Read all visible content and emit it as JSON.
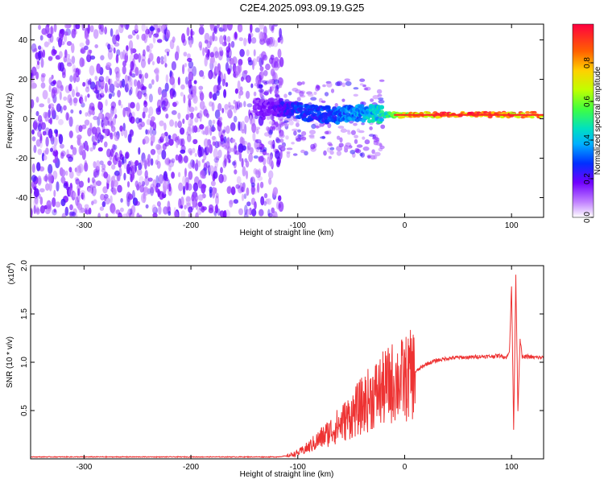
{
  "title": "C2E4.2025.093.09.19.G25",
  "chart_data": [
    {
      "type": "heatmap",
      "xlabel": "Height of straight line (km)",
      "ylabel": "Frequency (Hz)",
      "xlim": [
        -350,
        130
      ],
      "ylim": [
        -50,
        48
      ],
      "xticks": [
        -300,
        -200,
        -100,
        0,
        100
      ],
      "yticks": [
        -40,
        -20,
        0,
        20,
        40
      ],
      "colorbar": {
        "label": "Normalized spectral amplitude",
        "range": [
          0.0,
          1.0
        ],
        "ticks": [
          0.0,
          0.2,
          0.4,
          0.6,
          0.8
        ],
        "tick_labels": [
          "0.0",
          "0.2",
          "0.4",
          "0.6",
          "0.8"
        ]
      },
      "ridge": [
        {
          "x": -140,
          "freq": 6,
          "amp": 0.15
        },
        {
          "x": -120,
          "freq": 6,
          "amp": 0.2
        },
        {
          "x": -100,
          "freq": 4,
          "amp": 0.3
        },
        {
          "x": -80,
          "freq": 2,
          "amp": 0.3
        },
        {
          "x": -60,
          "freq": 2,
          "amp": 0.35
        },
        {
          "x": -40,
          "freq": 3,
          "amp": 0.4
        },
        {
          "x": -20,
          "freq": 2,
          "amp": 0.5
        },
        {
          "x": 0,
          "freq": 2,
          "amp": 0.75
        },
        {
          "x": 20,
          "freq": 2,
          "amp": 0.85
        },
        {
          "x": 50,
          "freq": 2,
          "amp": 0.95
        },
        {
          "x": 80,
          "freq": 2,
          "amp": 0.95
        },
        {
          "x": 100,
          "freq": 2,
          "amp": 0.9
        },
        {
          "x": 130,
          "freq": 2,
          "amp": 0.95
        }
      ]
    },
    {
      "type": "line",
      "xlabel": "Height of straight line (km)",
      "ylabel": "SNR (10 * v/v)",
      "y_multiplier": "(x10",
      "y_multiplier_exp": "4",
      "xlim": [
        -350,
        130
      ],
      "ylim": [
        0,
        2.0
      ],
      "xticks": [
        -300,
        -200,
        -100,
        0,
        100
      ],
      "yticks": [
        0.5,
        1.0,
        1.5,
        2.0
      ],
      "ytick_labels": [
        "0.5",
        "1.0",
        "1.5",
        "2.0"
      ],
      "color": "#ee3333",
      "series": [
        {
          "x": [
            -350,
            -300,
            -250,
            -200,
            -150,
            -120,
            -110,
            -100,
            -90,
            -80,
            -70,
            -60,
            -50,
            -40,
            -30,
            -20,
            -10,
            0,
            10,
            20,
            30,
            40,
            50,
            60,
            70,
            80,
            90,
            95,
            98,
            100,
            102,
            104,
            106,
            108,
            110,
            115,
            120,
            130
          ],
          "values": [
            0.02,
            0.02,
            0.02,
            0.02,
            0.02,
            0.02,
            0.03,
            0.06,
            0.12,
            0.2,
            0.28,
            0.36,
            0.45,
            0.55,
            0.65,
            0.72,
            0.8,
            0.82,
            0.9,
            0.98,
            1.02,
            1.04,
            1.05,
            1.05,
            1.06,
            1.06,
            1.07,
            1.05,
            1.1,
            1.8,
            0.3,
            1.9,
            0.5,
            1.25,
            1.05,
            1.06,
            1.05,
            1.05
          ]
        }
      ]
    }
  ]
}
